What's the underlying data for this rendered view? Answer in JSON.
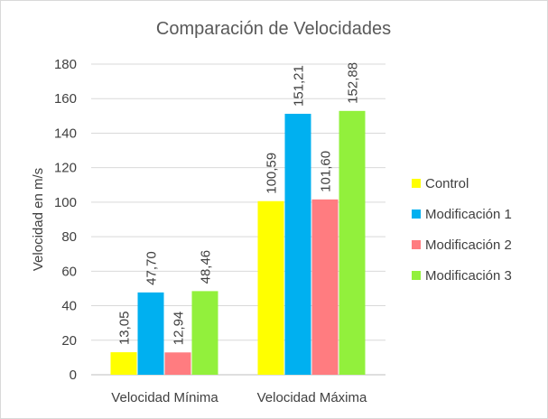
{
  "chart_data": {
    "type": "bar",
    "title": "Comparación de Velocidades",
    "ylabel": "Velocidad en m/s",
    "xlabel": "",
    "categories": [
      "Velocidad Mínima",
      "Velocidad Máxima"
    ],
    "ylim": [
      0,
      180
    ],
    "yticks": [
      0,
      20,
      40,
      60,
      80,
      100,
      120,
      140,
      160,
      180
    ],
    "grid": true,
    "legend_position": "right",
    "series": [
      {
        "name": "Control",
        "color": "#ffff00",
        "values": [
          13.05,
          100.59
        ],
        "labels": [
          "13,05",
          "100,59"
        ]
      },
      {
        "name": "Modificación 1",
        "color": "#00b0f0",
        "values": [
          47.7,
          151.21
        ],
        "labels": [
          "47,70",
          "151,21"
        ]
      },
      {
        "name": "Modificación 2",
        "color": "#ff7c80",
        "values": [
          12.94,
          101.6
        ],
        "labels": [
          "12,94",
          "101,60"
        ]
      },
      {
        "name": "Modificación 3",
        "color": "#92f03c",
        "values": [
          48.46,
          152.88
        ],
        "labels": [
          "48,46",
          "152,88"
        ]
      }
    ]
  }
}
